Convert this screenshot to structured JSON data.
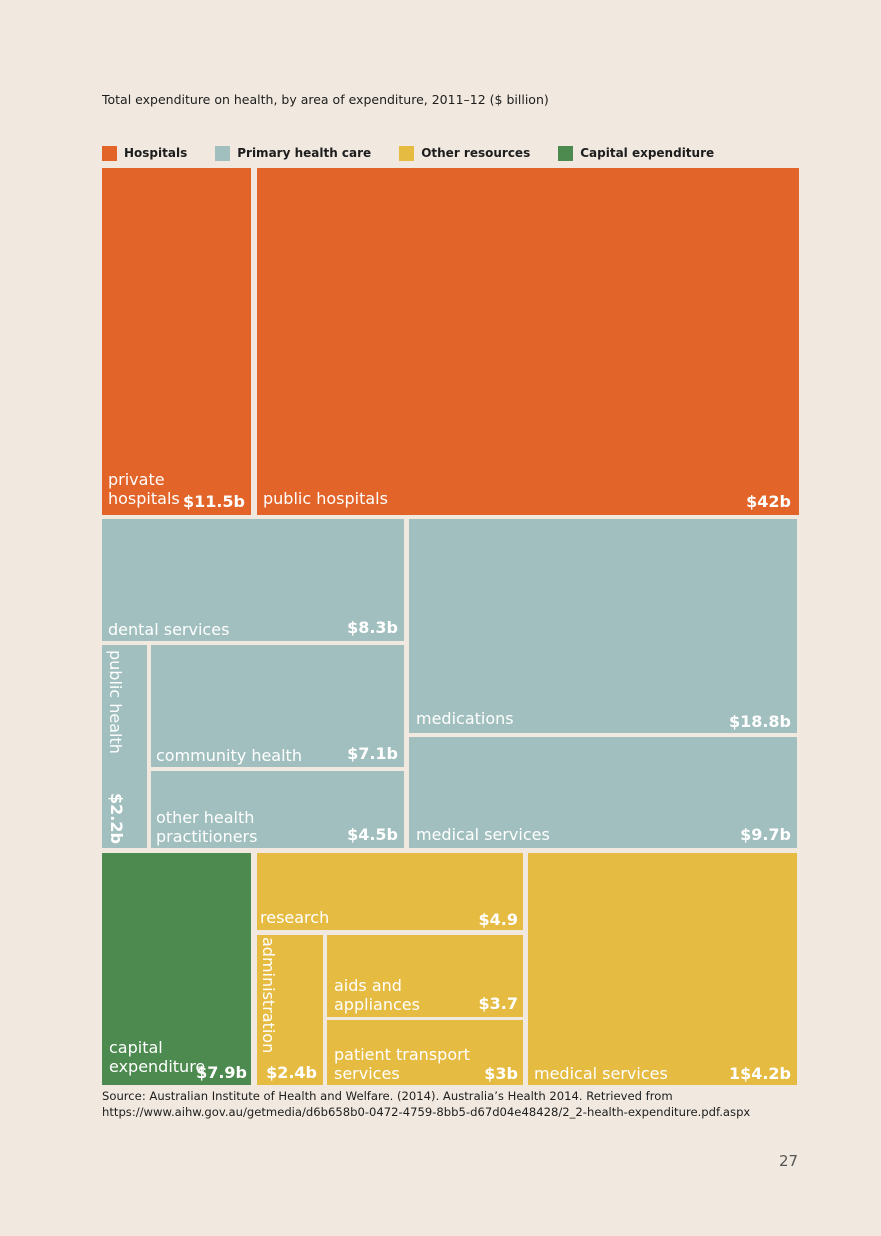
{
  "colors": {
    "background": "#f1e9df",
    "Hospitals": "#e36428",
    "Primary health care": "#a0bfbe",
    "Other resources": "#e6bb42",
    "Capital expenditure": "#4d8a4f"
  },
  "chart_data": {
    "type": "treemap",
    "title": "Total expenditure on health, by area of expenditure, 2011–12 ($ billion)",
    "legend": [
      "Hospitals",
      "Primary health care",
      "Other resources",
      "Capital expenditure"
    ],
    "legend_position": "top-left",
    "groups": [
      {
        "name": "Hospitals",
        "items": [
          {
            "label": "private\nhospitals",
            "value": 11.5,
            "value_label": "$11.5b"
          },
          {
            "label": "public hospitals",
            "value": 42,
            "value_label": "$42b"
          }
        ]
      },
      {
        "name": "Primary health care",
        "items": [
          {
            "label": "dental services",
            "value": 8.3,
            "value_label": "$8.3b"
          },
          {
            "label": "public health",
            "value": 2.2,
            "value_label": "$2.2b"
          },
          {
            "label": "community health",
            "value": 7.1,
            "value_label": "$7.1b"
          },
          {
            "label": "other health\npractitioners",
            "value": 4.5,
            "value_label": "$4.5b"
          },
          {
            "label": "medications",
            "value": 18.8,
            "value_label": "$18.8b"
          },
          {
            "label": "medical services",
            "value": 9.7,
            "value_label": "$9.7b"
          }
        ]
      },
      {
        "name": "Capital expenditure",
        "items": [
          {
            "label": "capital\nexpenditure",
            "value": 7.9,
            "value_label": "$7.9b"
          }
        ]
      },
      {
        "name": "Other resources",
        "items": [
          {
            "label": "research",
            "value": 4.9,
            "value_label": "$4.9"
          },
          {
            "label": "administration",
            "value": 2.4,
            "value_label": "$2.4b"
          },
          {
            "label": "aids and\nappliances",
            "value": 3.7,
            "value_label": "$3.7"
          },
          {
            "label": "patient transport\nservices",
            "value": 3,
            "value_label": "$3b"
          },
          {
            "label": "medical services",
            "value": 14.2,
            "value_label": "1$4.2b"
          }
        ]
      }
    ],
    "source": "Source: Australian Institute of Health and Welfare. (2014). Australia’s Health 2014.  Retrieved from https://www.aihw.gov.au/getmedia/d6b658b0-0472-4759-8bb5-d67d04e48428/2_2-health-expenditure.pdf.aspx"
  },
  "page_number": "27"
}
